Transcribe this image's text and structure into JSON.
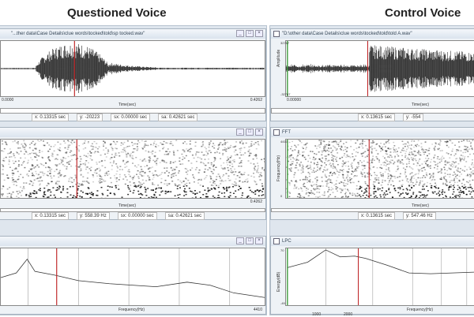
{
  "headers": {
    "left": "Questioned Voice",
    "right": "Control Voice"
  },
  "left": {
    "wave": {
      "title": "\"...ther data\\Case Details\\clue words\\tocked\\told\\sp tocked.wav\"",
      "x_start": "0.0000",
      "x_end": "0.4262",
      "xlabel": "Time(sec)",
      "x": "x: 0.13315 sec",
      "y": "y: -20223",
      "sx": "sx: 0.00000 sec",
      "sa": "sa: 0.42621 sec"
    },
    "spec": {
      "x_start": "0.0000",
      "x_end": "0.4262",
      "xlabel": "Time(sec)",
      "x": "x: 0.13315 sec",
      "y": "y: 558.39 Hz",
      "sx": "sx: 0.00000 sec",
      "sa": "sa: 0.42621 sec"
    },
    "lpc": {
      "xlabel": "Frequency(Hz)",
      "x_end": "4410"
    }
  },
  "right": {
    "wave": {
      "title": "\"D:\\other data\\Case Details\\clue words\\tocked\\told\\told A.wav\"",
      "y_max": "32767",
      "y_min": "-32767",
      "ylabel": "Amplitude",
      "x_start": "0.00000",
      "xlabel": "Time(sec)",
      "x": "x: 0.13615 sec",
      "y": "y: -554"
    },
    "spec": {
      "title": "FFT",
      "y_max": "4410",
      "y_min": "0",
      "ylabel": "Frequency(Hz)",
      "xlabel": "Time(sec)",
      "x": "x: 0.13615 sec",
      "y": "y: 547.46 Hz"
    },
    "lpc": {
      "title": "LPC",
      "y_max": "70",
      "y_min": "-49",
      "ylabel": "Energy(dB)",
      "xlabel": "Frequency(Hz)",
      "ticks": [
        "1000",
        "2000"
      ]
    }
  },
  "window_buttons": {
    "min": "_",
    "max": "□",
    "close": "×"
  },
  "colors": {
    "cursor": "#c0282a",
    "marker": "#3a9a3a"
  }
}
